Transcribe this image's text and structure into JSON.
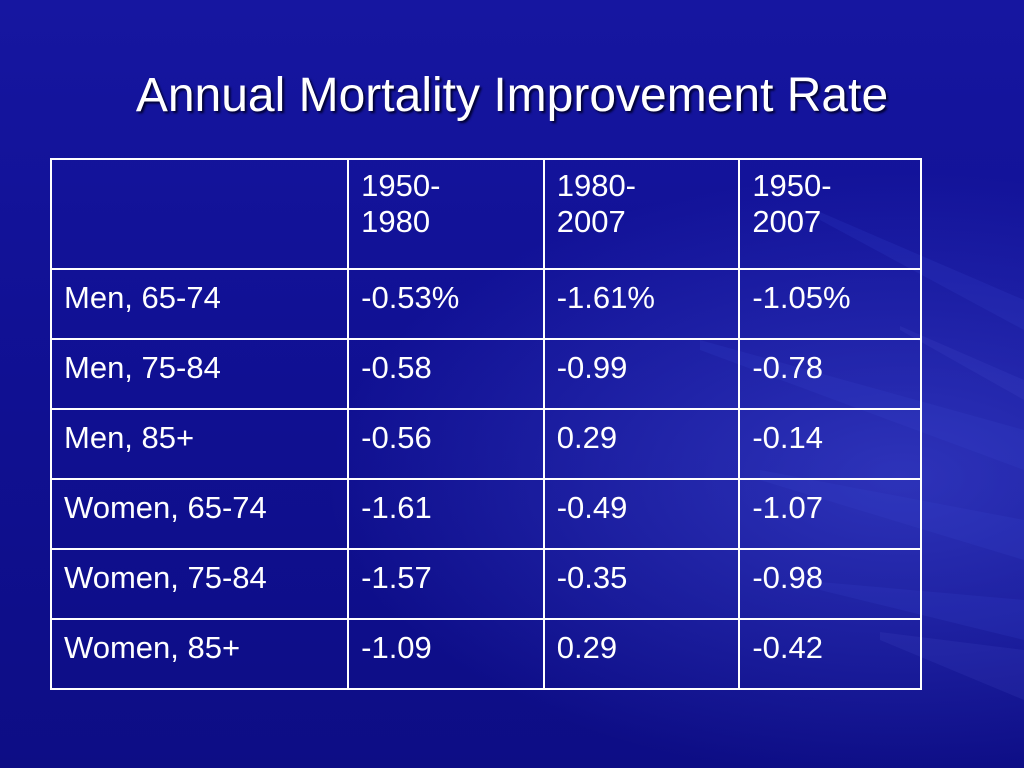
{
  "title": "Annual Mortality Improvement Rate",
  "table": {
    "header": [
      "",
      "1950-1980",
      "1980-2007",
      "1950-2007"
    ],
    "header_lines": [
      [
        "",
        ""
      ],
      [
        "1950-",
        "1980"
      ],
      [
        "1980-",
        "2007"
      ],
      [
        "1950-",
        "2007"
      ]
    ],
    "rows": [
      [
        "Men, 65-74",
        "-0.53%",
        "-1.61%",
        "-1.05%"
      ],
      [
        "Men, 75-84",
        "-0.58",
        "-0.99",
        "-0.78"
      ],
      [
        "Men, 85+",
        "-0.56",
        "0.29",
        "-0.14"
      ],
      [
        "Women, 65-74",
        "-1.61",
        "-0.49",
        "-1.07"
      ],
      [
        "Women, 75-84",
        "-1.57",
        "-0.35",
        "-0.98"
      ],
      [
        "Women, 85+",
        "-1.09",
        "0.29",
        "-0.42"
      ]
    ]
  },
  "colors": {
    "background": "#11118f",
    "text": "#ffffff",
    "border": "#ffffff"
  }
}
